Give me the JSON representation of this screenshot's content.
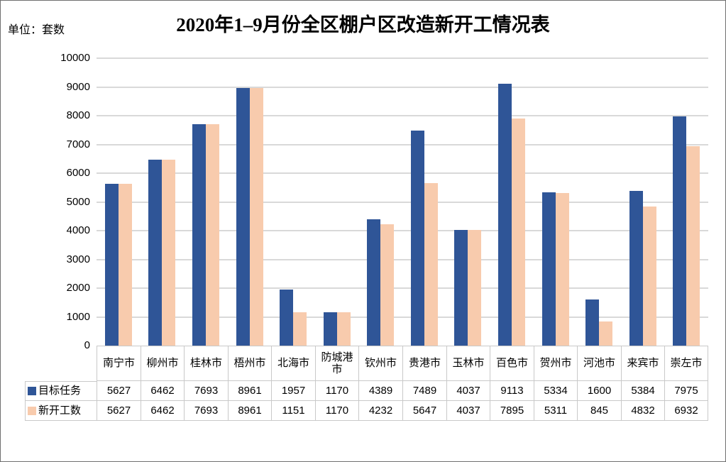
{
  "chart_data": {
    "type": "bar",
    "title": "2020年1–9月份全区棚户区改造新开工情况表",
    "unit_label": "单位：套数",
    "categories": [
      "南宁市",
      "柳州市",
      "桂林市",
      "梧州市",
      "北海市",
      "防城港市",
      "钦州市",
      "贵港市",
      "玉林市",
      "百色市",
      "贺州市",
      "河池市",
      "来宾市",
      "崇左市"
    ],
    "series": [
      {
        "name": "目标任务",
        "color": "#2F5597",
        "values": [
          5627,
          6462,
          7693,
          8961,
          1957,
          1170,
          4389,
          7489,
          4037,
          9113,
          5334,
          1600,
          5384,
          7975
        ]
      },
      {
        "name": "新开工数",
        "color": "#F8CBAD",
        "values": [
          5627,
          6462,
          7693,
          8961,
          1151,
          1170,
          4232,
          5647,
          4037,
          7895,
          5311,
          845,
          4832,
          6932
        ]
      }
    ],
    "ylim": [
      0,
      10000
    ],
    "ytick_interval": 1000,
    "ytick_labels": [
      "0",
      "1000",
      "2000",
      "3000",
      "4000",
      "5000",
      "6000",
      "7000",
      "8000",
      "9000",
      "10000"
    ],
    "grid": true,
    "gridline_color": "#D9D9D9",
    "table_border_color": "#C9C9C9",
    "legend_position": "left-of-data-table",
    "data_table_shown": true,
    "xlabel": "",
    "ylabel": ""
  }
}
